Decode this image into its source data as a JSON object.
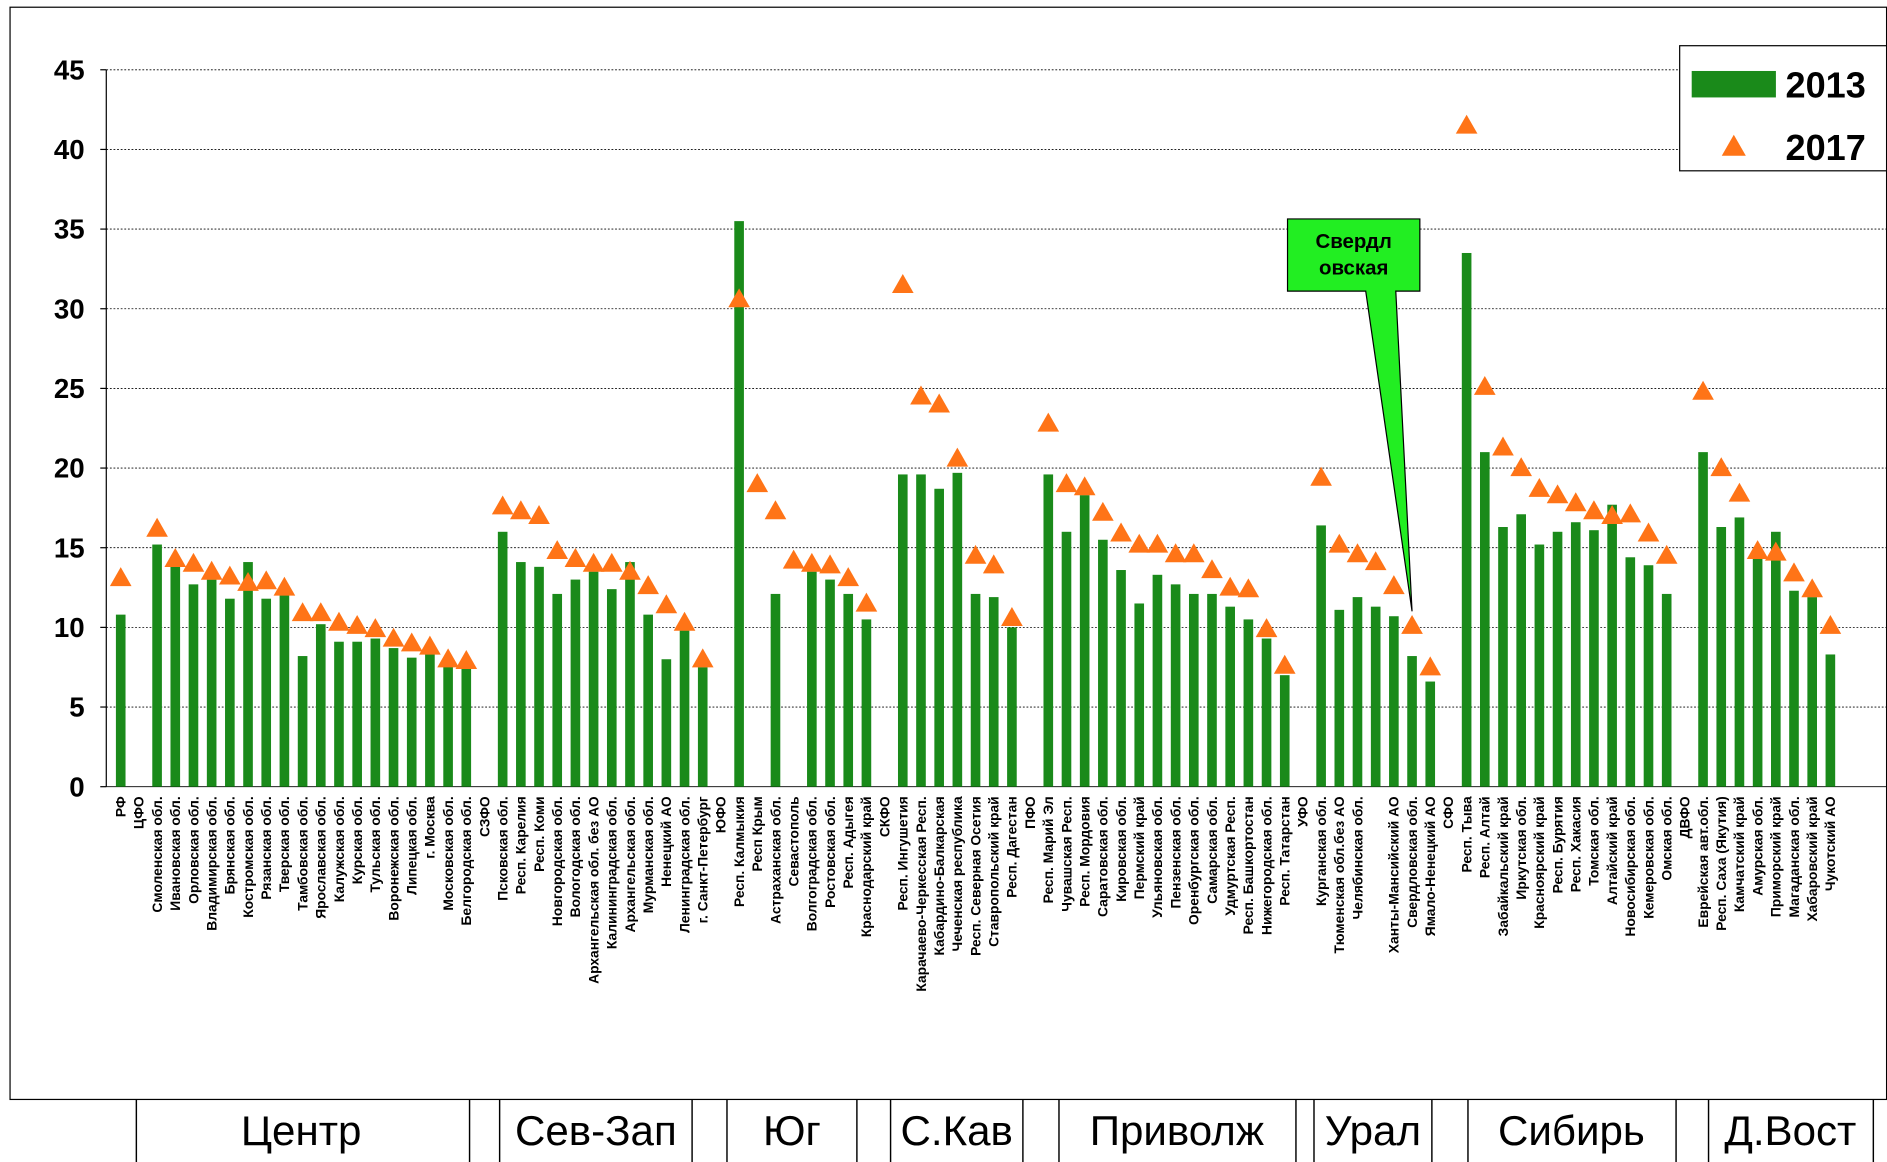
{
  "chart_data": {
    "type": "bar",
    "ylim": [
      0,
      45
    ],
    "yticks": [
      0,
      5,
      10,
      15,
      20,
      25,
      30,
      35,
      40,
      45
    ],
    "grid": true,
    "categories": [
      "РФ",
      "ЦФО",
      "Смоленская обл.",
      "Ивановская обл.",
      "Орловская обл.",
      "Владимирская обл.",
      "Брянская обл.",
      "Костромская обл.",
      "Рязанская обл.",
      "Тверская обл.",
      "Тамбовская обл.",
      "Ярославская обл.",
      "Калужская обл.",
      "Курская обл.",
      "Тульская обл.",
      "Воронежская обл.",
      "Липецкая обл.",
      "г. Москва",
      "Московская обл.",
      "Белгородская обл.",
      "СЗФО",
      "Псковская обл.",
      "Респ. Карелия",
      "Респ. Коми",
      "Новгородская обл.",
      "Вологодская обл.",
      "Архангельская обл. без АО",
      "Калининградская обл.",
      "Архангельская обл.",
      "Мурманская обл.",
      "Ненецкий АО",
      "Ленинградская обл.",
      "г. Санкт-Петербург",
      "ЮФО",
      "Респ. Калмыкия",
      "Респ Крым",
      "Астраханская обл.",
      "Севастополь",
      "Волгоградская обл.",
      "Ростовская обл.",
      "Респ. Адыгея",
      "Краснодарский край",
      "СКФО",
      "Респ. Ингушетия",
      "Карачаево-Черкесская Респ.",
      "Кабардино-Балкарская",
      "Чеченская республика",
      "Респ. Северная Осетия",
      "Ставропольский край",
      "Респ. Дагестан",
      "ПФО",
      "Респ. Марий Эл",
      "Чувашская Респ.",
      "Респ. Мордовия",
      "Саратовская обл.",
      "Кировская обл.",
      "Пермский край",
      "Ульяновская обл.",
      "Пензенская обл.",
      "Оренбургская обл.",
      "Самарская обл.",
      "Удмуртская Респ.",
      "Респ. Башкортостан",
      "Нижегородская обл.",
      "Респ. Татарстан",
      "УФО",
      "Курганская обл.",
      "Тюменская обл.без АО",
      "Челябинская обл.",
      null,
      "Ханты-Мансийский АО",
      "Свердловская обл.",
      "Ямало-Ненецкий АО",
      "СФО",
      "Респ. Тыва",
      "Респ. Алтай",
      "Забайкальский край",
      "Иркутская обл.",
      "Красноярский край",
      "Респ. Бурятия",
      "Респ. Хакасия",
      "Томская обл.",
      "Алтайский край",
      "Новосибирская обл.",
      "Кемеровская обл.",
      "Омская обл.",
      "ДВФО",
      "Еврейская авт.обл.",
      "Респ. Саха (Якутия)",
      "Камчатский край",
      "Амурская обл.",
      "Приморский край",
      "Магаданская обл.",
      "Хабаровский край",
      "Чукотский АО"
    ],
    "series": [
      {
        "name": "2013",
        "color": "#1a8a1a",
        "kind": "bar",
        "values": [
          10.8,
          null,
          15.2,
          13.8,
          12.7,
          13.0,
          11.8,
          14.1,
          11.8,
          12.0,
          8.2,
          10.2,
          9.1,
          9.1,
          9.3,
          8.7,
          8.1,
          8.3,
          7.6,
          7.5,
          null,
          16.0,
          14.1,
          13.8,
          12.1,
          13.0,
          13.5,
          12.4,
          14.1,
          10.8,
          8.0,
          9.8,
          7.5,
          null,
          35.5,
          null,
          12.1,
          null,
          13.5,
          13.0,
          12.1,
          10.5,
          null,
          19.6,
          19.6,
          18.7,
          19.7,
          12.1,
          11.9,
          10.0,
          null,
          19.6,
          16.0,
          18.3,
          15.5,
          13.6,
          11.5,
          13.3,
          12.7,
          12.1,
          12.1,
          11.3,
          10.5,
          9.3,
          7.0,
          null,
          16.4,
          11.1,
          11.9,
          11.3,
          10.7,
          8.2,
          6.6,
          null,
          33.5,
          21.0,
          16.3,
          17.1,
          15.2,
          16.0,
          16.6,
          16.1,
          17.7,
          14.4,
          13.9,
          12.1,
          null,
          21.0,
          16.3,
          16.9,
          14.7,
          16.0,
          12.3,
          11.9,
          8.3
        ]
      },
      {
        "name": "2017",
        "color": "#ff7417",
        "kind": "triangle",
        "values": [
          13.1,
          null,
          16.2,
          14.3,
          14.0,
          13.5,
          13.2,
          12.8,
          12.9,
          12.5,
          10.9,
          10.9,
          10.3,
          10.1,
          9.9,
          9.3,
          9.0,
          8.8,
          8.0,
          7.9,
          null,
          17.6,
          17.3,
          17.0,
          14.8,
          14.3,
          14.0,
          14.0,
          13.5,
          12.6,
          11.4,
          10.3,
          8.0,
          null,
          30.6,
          19.0,
          17.3,
          14.2,
          14.0,
          13.9,
          13.1,
          11.5,
          null,
          31.5,
          24.5,
          24.0,
          20.6,
          14.5,
          13.9,
          10.6,
          null,
          22.8,
          19.0,
          18.8,
          17.2,
          15.9,
          15.2,
          15.2,
          14.6,
          14.6,
          13.6,
          12.5,
          12.4,
          9.9,
          7.6,
          null,
          19.4,
          15.2,
          14.6,
          14.1,
          12.6,
          10.1,
          7.5,
          null,
          41.5,
          25.1,
          21.3,
          20.0,
          18.7,
          18.3,
          17.8,
          17.3,
          17.0,
          17.1,
          15.9,
          14.5,
          null,
          24.8,
          20.0,
          18.4,
          14.8,
          14.7,
          13.4,
          12.4,
          10.1
        ]
      }
    ],
    "legend": "top-right",
    "annotation": {
      "lines": [
        "Свердл",
        "овская"
      ],
      "color": "#22ee22",
      "category": 71,
      "series": 1
    },
    "regions": [
      "Центр",
      "Сев-Зап",
      "Юг",
      "С.Кав",
      "Приволж",
      "Урал",
      "Сибирь",
      "Д.Вост"
    ]
  }
}
